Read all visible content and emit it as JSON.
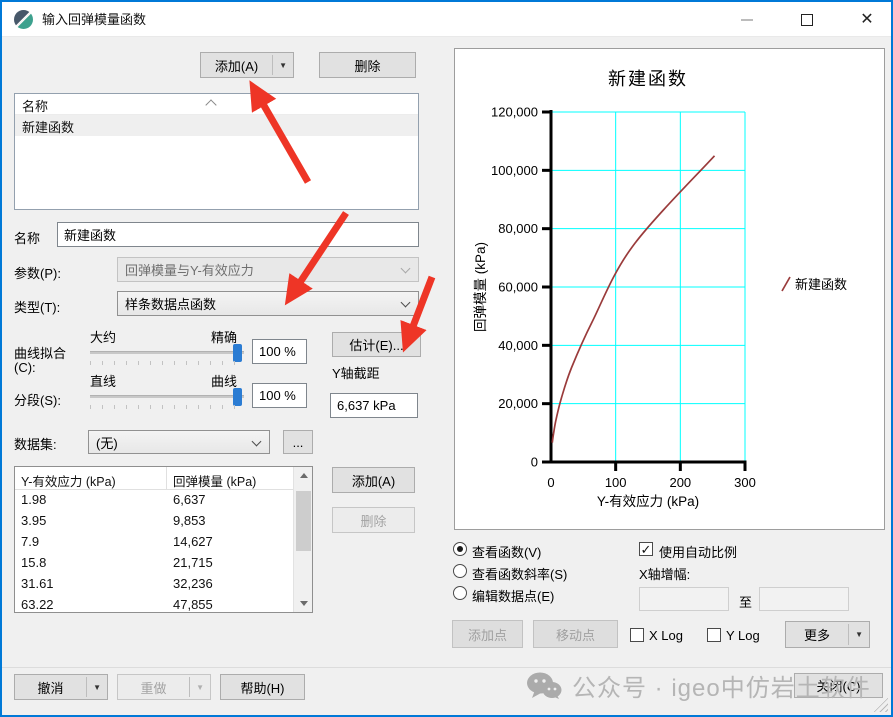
{
  "window": {
    "title": "输入回弹模量函数",
    "minimize": "minimize",
    "maximize": "maximize",
    "close": "close"
  },
  "top_buttons": {
    "add": "添加(A)",
    "delete": "删除"
  },
  "function_list": {
    "header": "名称",
    "rows": [
      "新建函数"
    ]
  },
  "form": {
    "name_label": "名称",
    "name_value": "新建函数",
    "param_label": "参数(P):",
    "param_value": "回弹模量与Y-有效应力",
    "type_label": "类型(T):",
    "type_value": "样条数据点函数"
  },
  "fit": {
    "curve_fit_label": "曲线拟合",
    "curve_fit_label2": "(C):",
    "segments_label": "分段(S):",
    "approx": "大约",
    "precise": "精确",
    "straight": "直线",
    "curved": "曲线",
    "fit_value": "100 %",
    "segments_value": "100 %",
    "estimate": "估计(E)...",
    "y_intercept_label": "Y轴截距",
    "y_intercept_value": "6,637 kPa"
  },
  "dataset": {
    "label": "数据集:",
    "value": "(无)",
    "browse": "..."
  },
  "table": {
    "columns": [
      "Y-有效应力 (kPa)",
      "回弹模量 (kPa)"
    ],
    "rows": [
      [
        "1.98",
        "6,637"
      ],
      [
        "3.95",
        "9,853"
      ],
      [
        "7.9",
        "14,627"
      ],
      [
        "15.8",
        "21,715"
      ],
      [
        "31.61",
        "32,236"
      ],
      [
        "63.22",
        "47,855"
      ]
    ],
    "add": "添加(A)",
    "delete": "删除"
  },
  "chart_data": {
    "type": "line",
    "title": "新建函数",
    "xlabel": "Y-有效应力 (kPa)",
    "ylabel": "回弹模量 (kPa)",
    "xlim": [
      0,
      300
    ],
    "ylim": [
      0,
      120000
    ],
    "xticks": [
      0,
      100,
      200,
      300
    ],
    "yticks": [
      0,
      20000,
      40000,
      60000,
      80000,
      100000,
      120000
    ],
    "grid": true,
    "grid_color": "#00ffff",
    "legend_position": "right",
    "series": [
      {
        "name": "新建函数",
        "color": "#9a3b3b",
        "points": [
          [
            1.98,
            6637
          ],
          [
            3.95,
            9853
          ],
          [
            7.9,
            14627
          ],
          [
            15.8,
            21715
          ],
          [
            31.61,
            32236
          ],
          [
            63.22,
            47855
          ],
          [
            126.4,
            74000
          ],
          [
            252.9,
            105000
          ]
        ]
      }
    ]
  },
  "view_options": {
    "view_function": "查看函数(V)",
    "view_slope": "查看函数斜率(S)",
    "edit_points": "编辑数据点(E)",
    "auto_scale": "使用自动比例",
    "auto_scale_checked": "✓",
    "x_increment": "X轴增幅:",
    "to": "至",
    "x_min_value": "",
    "x_max_value": "",
    "add_point": "添加点",
    "move_point": "移动点",
    "x_log": "X Log",
    "y_log": "Y Log",
    "more": "更多"
  },
  "bottom_bar": {
    "undo": "撤消",
    "redo": "重做",
    "help": "帮助(H)",
    "close": "关闭(C)"
  },
  "watermark": {
    "text": "公众号 · igeo中仿岩土软件"
  },
  "annotations": {
    "color": "#ee3526",
    "arrows": [
      {
        "from": [
          306,
          180
        ],
        "to": [
          253,
          88
        ]
      },
      {
        "from": [
          344,
          211
        ],
        "to": [
          289,
          294
        ]
      },
      {
        "from": [
          430,
          275
        ],
        "to": [
          405,
          340
        ]
      }
    ]
  },
  "colors": {
    "accent": "#0079d7",
    "slider": "#2b7cd3",
    "grid": "#00ffff",
    "curve": "#9a3b3b",
    "watermark": "#b5b5b5"
  }
}
